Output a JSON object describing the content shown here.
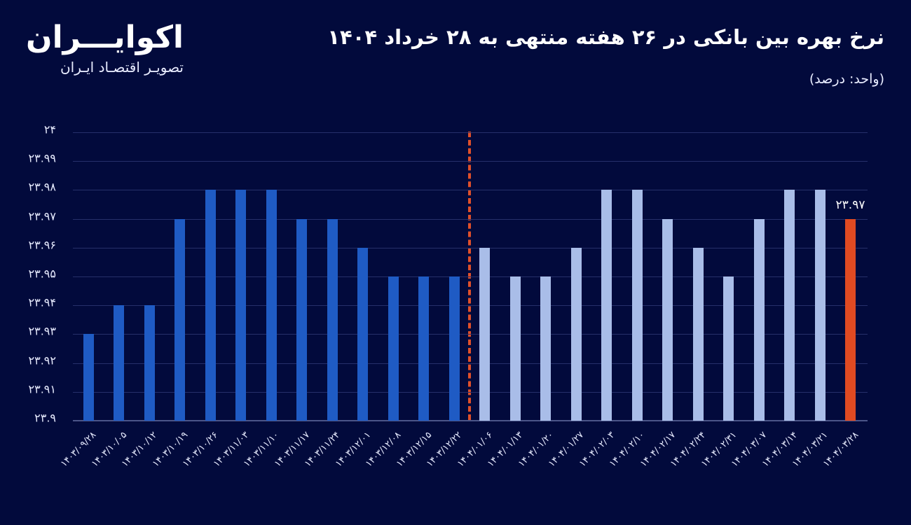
{
  "logo": {
    "name": "اکوایـــران",
    "tagline": "تصویـر اقتصـاد ایـران"
  },
  "header": {
    "title": "نرخ بهره بین بانکی در ۲۶ هفته منتهی به ۲۸ خرداد ۱۴۰۴",
    "unit": "(واحد: درصد)"
  },
  "colors": {
    "background": "#020a3c",
    "series_1403": "#1f5bc4",
    "series_1404": "#a9bde8",
    "latest": "#e04a22",
    "divider": "#e0502a"
  },
  "highlight_label": "۲۳.۹۷",
  "chart_data": {
    "type": "bar",
    "title": "نرخ بهره بین بانکی در ۲۶ هفته منتهی به ۲۸ خرداد ۱۴۰۴",
    "xlabel": "",
    "ylabel": "درصد",
    "ylim": [
      23.9,
      24.0
    ],
    "y_ticks": [
      "۲۳.۹",
      "۲۳.۹۱",
      "۲۳.۹۲",
      "۲۳.۹۳",
      "۲۳.۹۴",
      "۲۳.۹۵",
      "۲۳.۹۶",
      "۲۳.۹۷",
      "۲۳.۹۸",
      "۲۳.۹۹",
      "۲۴"
    ],
    "grid": true,
    "legend": "none",
    "categories": [
      "۱۴۰۳/۰۹/۲۸",
      "۱۴۰۳/۱۰/۰۵",
      "۱۴۰۳/۱۰/۱۲",
      "۱۴۰۳/۱۰/۱۹",
      "۱۴۰۳/۱۰/۲۶",
      "۱۴۰۳/۱۱/۰۳",
      "۱۴۰۳/۱۱/۱۰",
      "۱۴۰۳/۱۱/۱۷",
      "۱۴۰۳/۱۱/۲۴",
      "۱۴۰۳/۱۲/۰۱",
      "۱۴۰۳/۱۲/۰۸",
      "۱۴۰۳/۱۲/۱۵",
      "۱۴۰۳/۱۲/۲۲",
      "۱۴۰۴/۰۱/۰۶",
      "۱۴۰۴/۰۱/۱۳",
      "۱۴۰۴/۰۱/۲۰",
      "۱۴۰۴/۰۱/۲۷",
      "۱۴۰۴/۰۲/۰۳",
      "۱۴۰۴/۰۲/۱۰",
      "۱۴۰۴/۰۲/۱۷",
      "۱۴۰۴/۰۲/۲۴",
      "۱۴۰۴/۰۲/۳۱",
      "۱۴۰۴/۰۳/۰۷",
      "۱۴۰۴/۰۳/۱۴",
      "۱۴۰۴/۰۳/۲۱",
      "۱۴۰۴/۰۳/۲۸"
    ],
    "values": [
      23.93,
      23.94,
      23.94,
      23.97,
      23.98,
      23.98,
      23.98,
      23.97,
      23.97,
      23.96,
      23.95,
      23.95,
      23.95,
      23.96,
      23.95,
      23.95,
      23.96,
      23.98,
      23.98,
      23.97,
      23.96,
      23.95,
      23.97,
      23.98,
      23.98,
      23.97
    ],
    "series_groups": [
      {
        "name": "1403",
        "from": 0,
        "to": 12,
        "color": "#1f5bc4"
      },
      {
        "name": "1404",
        "from": 13,
        "to": 24,
        "color": "#a9bde8"
      },
      {
        "name": "latest",
        "from": 25,
        "to": 25,
        "color": "#e04a22"
      }
    ],
    "annotations": [
      {
        "type": "vline-dashed",
        "between": [
          "۱۴۰۳/۱۲/۲۲",
          "۱۴۰۴/۰۱/۰۶"
        ],
        "color": "#e0502a"
      },
      {
        "type": "data-label",
        "category": "۱۴۰۴/۰۳/۲۸",
        "text": "۲۳.۹۷"
      }
    ]
  }
}
